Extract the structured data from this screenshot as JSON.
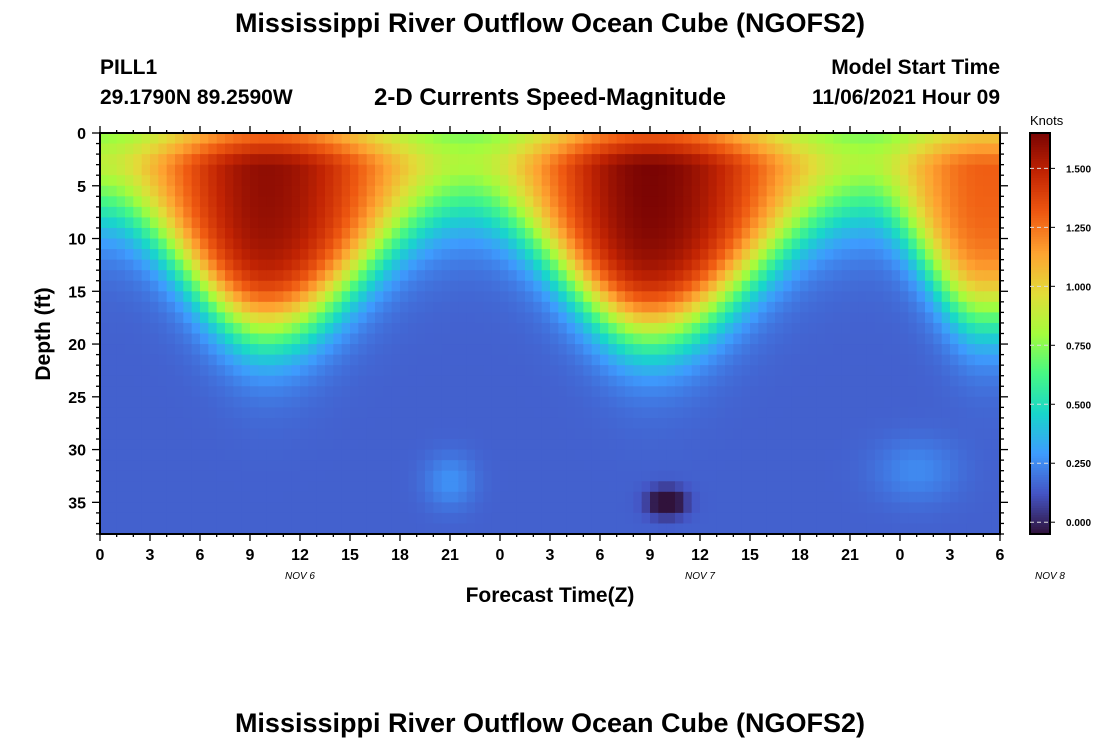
{
  "figure": {
    "title": "Mississippi River Outflow Ocean Cube (NGOFS2)",
    "title_repeat": "Mississippi River Outflow Ocean Cube (NGOFS2)",
    "station_id": "PILL1",
    "station_coords": "29.1790N  89.2590W",
    "subtitle": "2-D Currents Speed-Magnitude",
    "model_start_label": "Model Start Time",
    "model_start_value": "11/06/2021 Hour 09"
  },
  "chart_data": {
    "type": "heatmap",
    "title": "2-D Currents Speed-Magnitude",
    "xlabel": "Forecast Time(Z)",
    "ylabel": "Depth (ft)",
    "x_tick_labels": [
      "0",
      "3",
      "6",
      "9",
      "12",
      "15",
      "18",
      "21",
      "0",
      "3",
      "6",
      "9",
      "12",
      "15",
      "18",
      "21",
      "0",
      "3",
      "6"
    ],
    "x_hours_range": [
      0,
      54
    ],
    "date_labels": [
      {
        "label": "NOV 6",
        "hour": 12
      },
      {
        "label": "NOV 7",
        "hour": 36
      },
      {
        "label": "NOV 8",
        "hour": 57
      }
    ],
    "y_ticks": [
      0,
      5,
      10,
      15,
      20,
      25,
      30,
      35
    ],
    "y_range": [
      0,
      38
    ],
    "y_inverted": true,
    "colorbar": {
      "label": "Knots",
      "range": [
        -0.05,
        1.65
      ],
      "ticks": [
        "0.000",
        "0.250",
        "0.500",
        "0.750",
        "1.000",
        "1.250",
        "1.500"
      ],
      "colors": [
        "#30123b",
        "#4454c4",
        "#3e9bfe",
        "#18d6cb",
        "#46f884",
        "#a4fc3c",
        "#e2dc38",
        "#fea331",
        "#ef5911",
        "#c22403",
        "#7a0403"
      ]
    },
    "surface_peaks": [
      {
        "hour": 10,
        "speed": 1.6
      },
      {
        "hour": 33,
        "speed": 1.65
      },
      {
        "hour": 53,
        "speed": 1.3
      }
    ],
    "surface_minima": [
      {
        "hour": 0,
        "speed": 1.0
      },
      {
        "hour": 22,
        "speed": 0.95
      },
      {
        "hour": 46,
        "speed": 0.95
      }
    ],
    "deep_layer_speed": 0.15,
    "local_minimum": {
      "hour": 34,
      "depth": 35,
      "speed": -0.05
    }
  }
}
